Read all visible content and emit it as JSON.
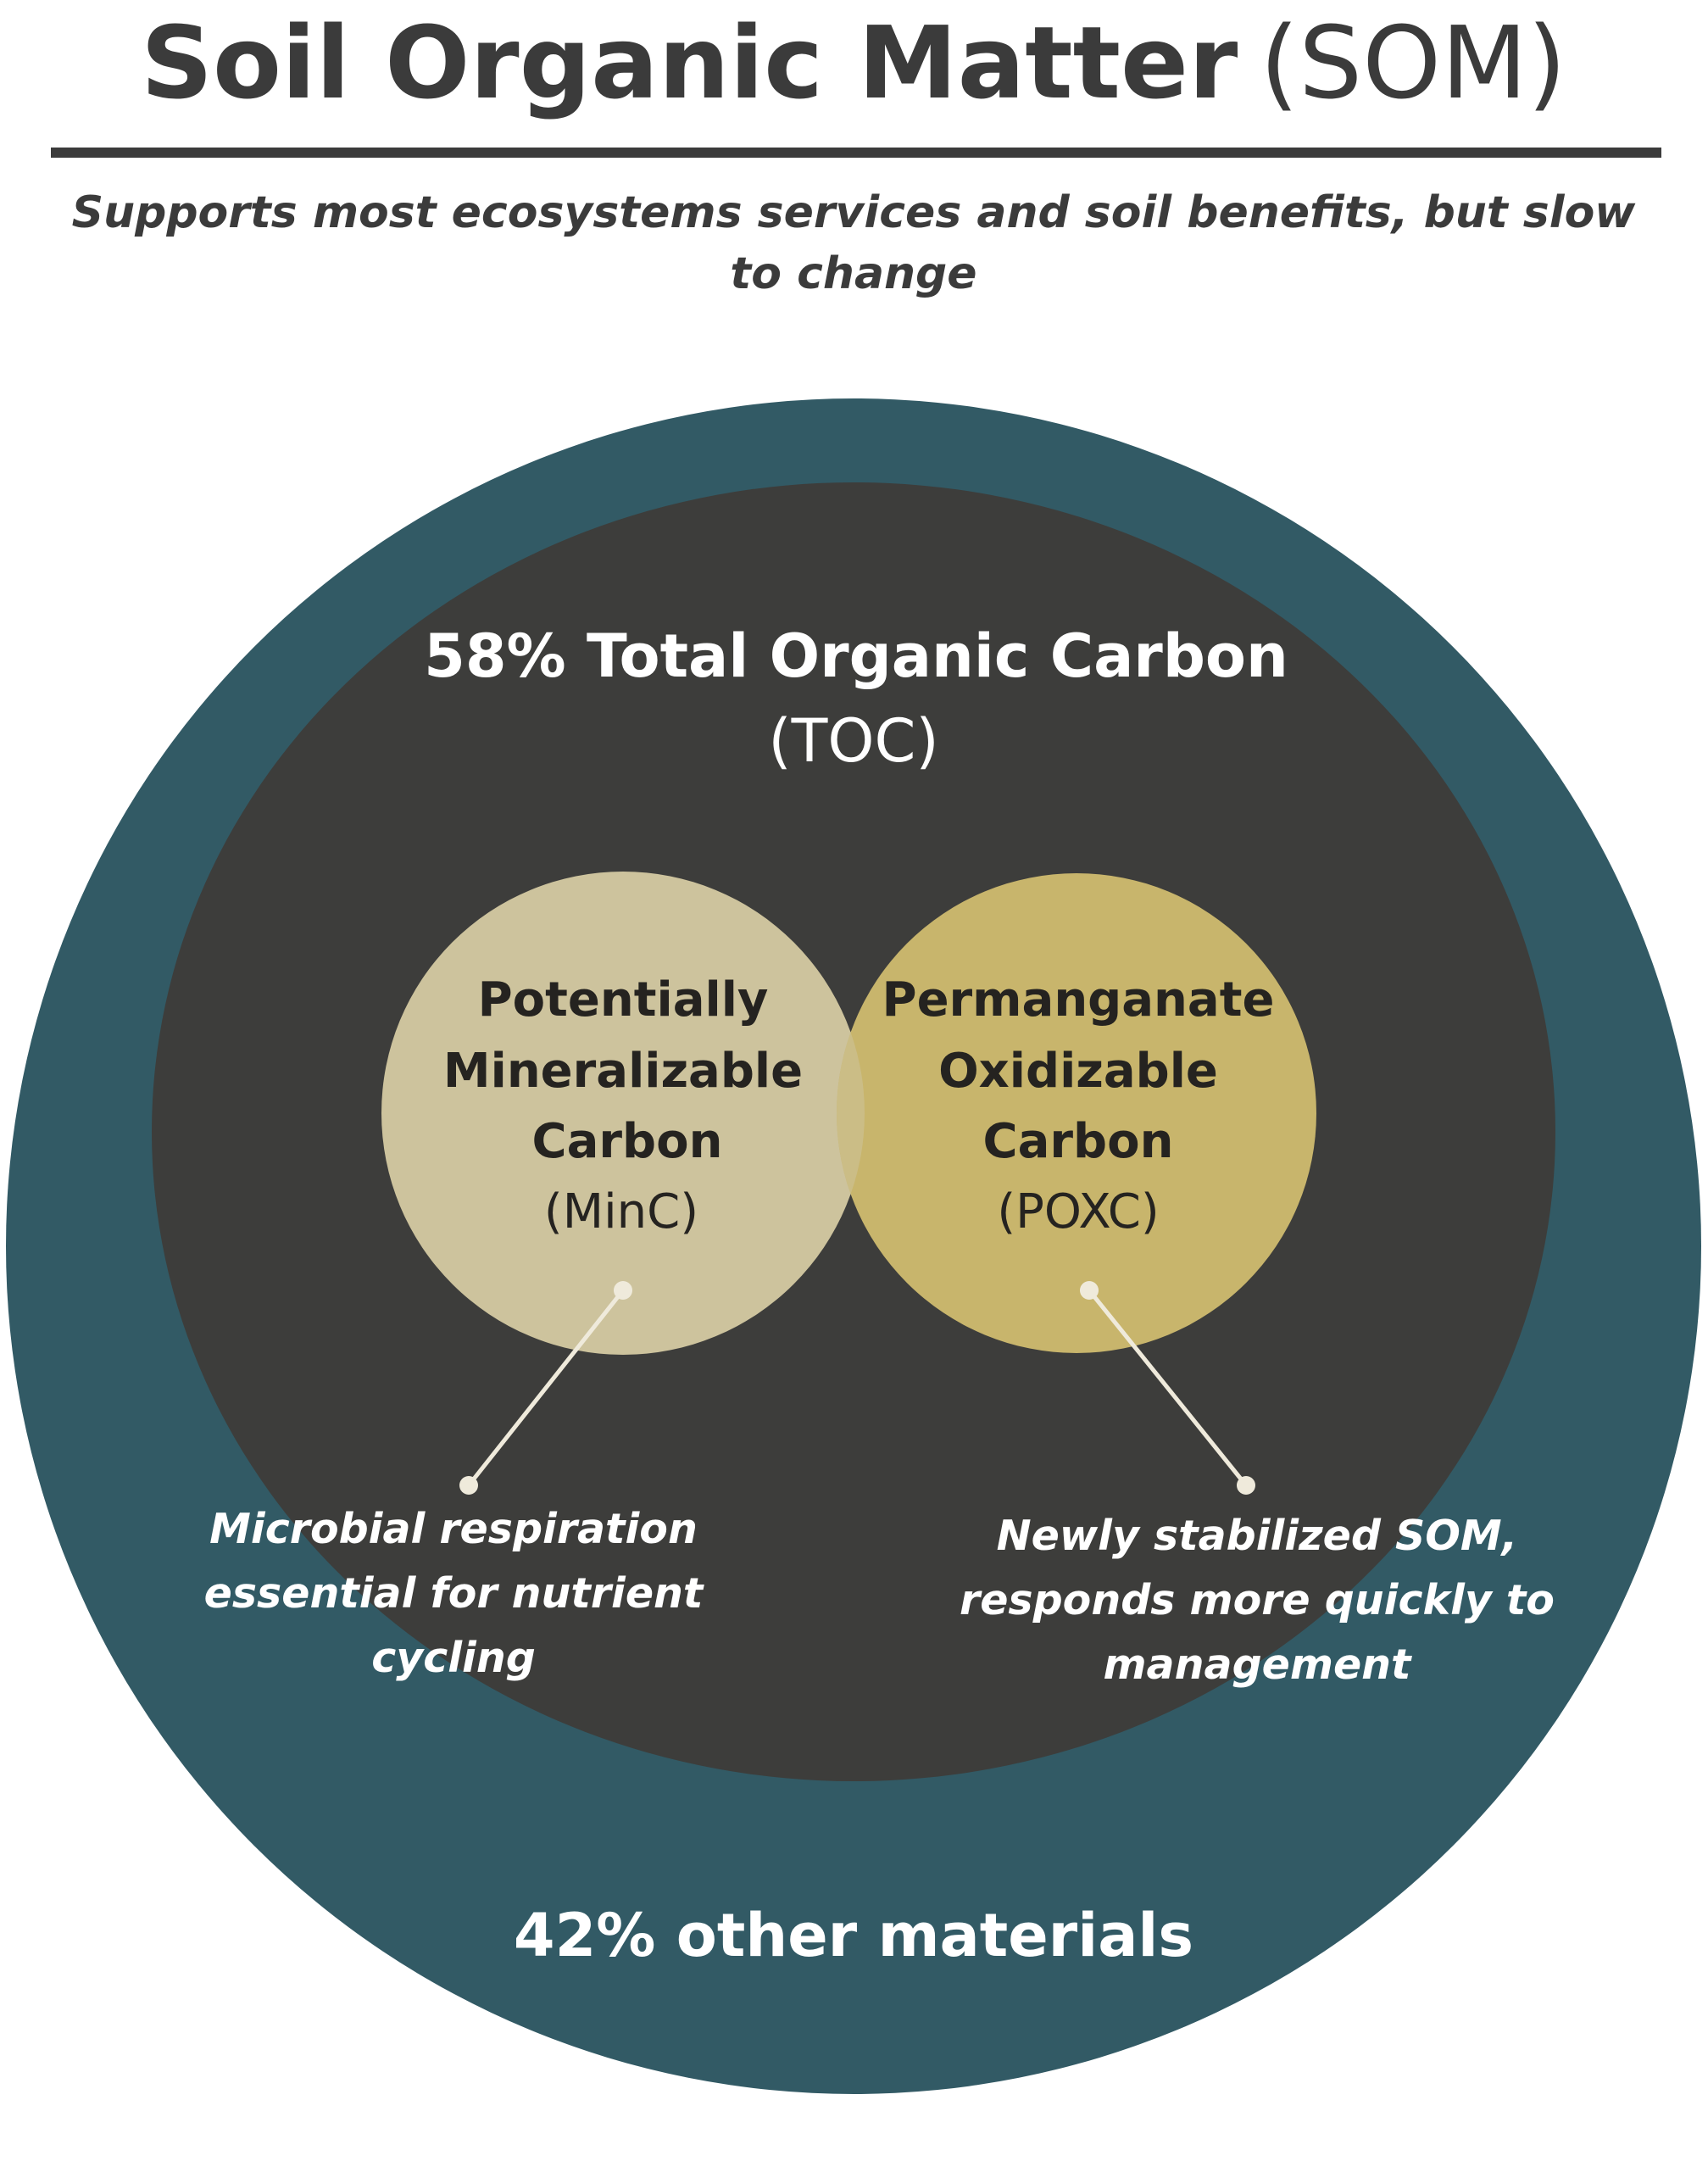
{
  "title": {
    "main": "Soil Organic Matter",
    "abbr": "(SOM)"
  },
  "subtitle": {
    "line1": "Supports most ecosystems services and soil benefits, but slow",
    "line2": "to change"
  },
  "outer": {
    "label": "42% other materials",
    "color": "#325a65"
  },
  "toc": {
    "label": "58% Total Organic Carbon",
    "abbr": "(TOC)",
    "color": "#3d3d3b"
  },
  "minc": {
    "line1": "Potentially",
    "line2": "Mineralizable",
    "line3": "Carbon",
    "abbr": "(MinC)",
    "color": "#cdc39d",
    "note": {
      "line1": "Microbial respiration",
      "line2": "essential for nutrient",
      "line3": "cycling"
    }
  },
  "poxc": {
    "line1": "Permanganate",
    "line2": "Oxidizable",
    "line3": "Carbon",
    "abbr": "(POXC)",
    "color": "#c8b56c",
    "note": {
      "line1": "Newly stabilized SOM,",
      "line2": "responds more quickly to",
      "line3": "management"
    }
  },
  "connector_color": "#efeadb",
  "divider_color": "#3b3b3b"
}
